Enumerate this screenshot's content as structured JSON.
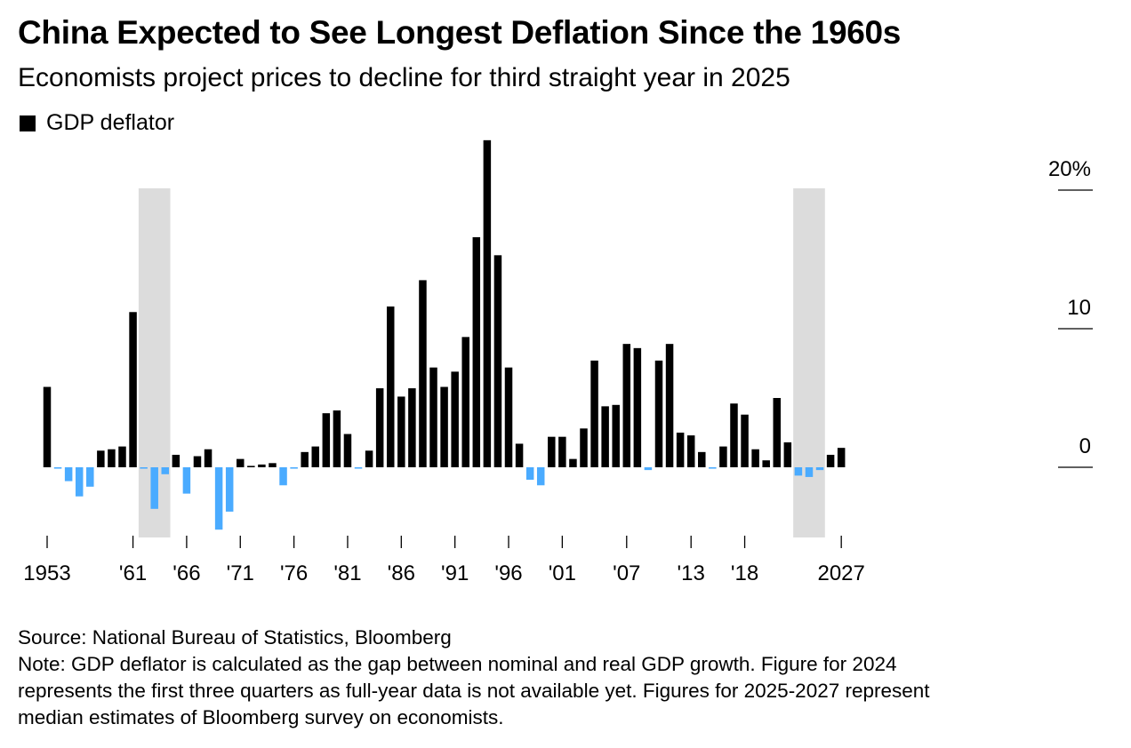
{
  "title": "China Expected to See Longest Deflation Since the 1960s",
  "subtitle": "Economists project prices to decline for third straight year in 2025",
  "legend": {
    "label": "GDP deflator",
    "color": "#000000"
  },
  "colors": {
    "positive": "#000000",
    "negative": "#4aabff",
    "shade": "#dcdcdc"
  },
  "footer": {
    "source": "Source: National Bureau of Statistics, Bloomberg",
    "note_lines": [
      "Note: GDP deflator is calculated as the gap between nominal and real GDP growth. Figure for 2024",
      "represents the first three quarters as full-year data is not available yet. Figures for 2025-2027 represent",
      "median estimates of Bloomberg survey on economists."
    ]
  },
  "chart_data": {
    "type": "bar",
    "title": "China Expected to See Longest Deflation Since the 1960s",
    "subtitle": "Economists project prices to decline for third straight year in 2025",
    "xlabel": "",
    "ylabel": "",
    "ylim": [
      -5,
      24
    ],
    "y_ticks": [
      0,
      10,
      20
    ],
    "y_tick_labels": [
      "0",
      "10",
      "20%"
    ],
    "x_tick_years": [
      1953,
      1961,
      1966,
      1971,
      1976,
      1981,
      1986,
      1991,
      1996,
      2001,
      2007,
      2013,
      2018,
      2027
    ],
    "x_tick_labels": [
      "1953",
      "'61",
      "'66",
      "'71",
      "'76",
      "'81",
      "'86",
      "'91",
      "'96",
      "'01",
      "'07",
      "'13",
      "'18",
      "2027"
    ],
    "shaded_periods": [
      [
        1962,
        1964
      ],
      [
        2023,
        2025
      ]
    ],
    "legend_position": "top-left",
    "grid": false,
    "series": [
      {
        "name": "GDP deflator",
        "x": [
          1953,
          1954,
          1955,
          1956,
          1957,
          1958,
          1959,
          1960,
          1961,
          1962,
          1963,
          1964,
          1965,
          1966,
          1967,
          1968,
          1969,
          1970,
          1971,
          1972,
          1973,
          1974,
          1975,
          1976,
          1977,
          1978,
          1979,
          1980,
          1981,
          1982,
          1983,
          1984,
          1985,
          1986,
          1987,
          1988,
          1989,
          1990,
          1991,
          1992,
          1993,
          1994,
          1995,
          1996,
          1997,
          1998,
          1999,
          2000,
          2001,
          2002,
          2003,
          2004,
          2005,
          2006,
          2007,
          2008,
          2009,
          2010,
          2011,
          2012,
          2013,
          2014,
          2015,
          2016,
          2017,
          2018,
          2019,
          2020,
          2021,
          2022,
          2023,
          2024,
          2025,
          2026,
          2027
        ],
        "values": [
          5.8,
          -0.1,
          -1.0,
          -2.1,
          -1.4,
          1.2,
          1.3,
          1.5,
          11.2,
          -0.1,
          -3.0,
          -0.5,
          0.9,
          -1.9,
          0.8,
          1.3,
          -4.5,
          -3.2,
          0.6,
          0.1,
          0.2,
          0.3,
          -1.3,
          -0.1,
          1.1,
          1.5,
          3.9,
          4.1,
          2.4,
          -0.1,
          1.2,
          5.7,
          11.6,
          5.1,
          5.7,
          13.5,
          7.2,
          5.8,
          6.9,
          9.4,
          16.6,
          23.6,
          15.3,
          7.2,
          1.7,
          -0.9,
          -1.3,
          2.2,
          2.2,
          0.6,
          2.8,
          7.7,
          4.4,
          4.5,
          8.9,
          8.6,
          -0.2,
          7.7,
          8.9,
          2.5,
          2.3,
          1.1,
          -0.1,
          1.5,
          4.6,
          3.8,
          1.3,
          0.5,
          5.0,
          1.8,
          -0.6,
          -0.7,
          -0.2,
          0.9,
          1.4
        ]
      }
    ]
  }
}
